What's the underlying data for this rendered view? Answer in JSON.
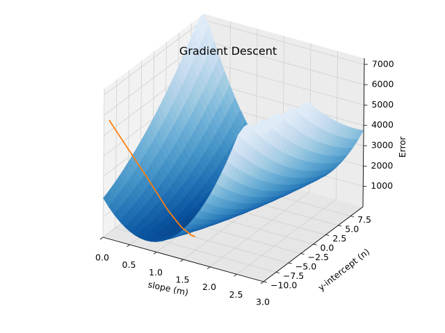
{
  "chart_data": {
    "type": "surface3d",
    "title": "Gradient Descent",
    "xlabel": "slope (m)",
    "ylabel": "y-intercept (n)",
    "zlabel": "Error",
    "x_ticks": [
      0.0,
      0.5,
      1.0,
      1.5,
      2.0,
      2.5,
      3.0
    ],
    "x_tick_labels": [
      "0.0",
      "0.5",
      "1.0",
      "1.5",
      "2.0",
      "2.5",
      "3.0"
    ],
    "y_ticks": [
      -10.0,
      -7.5,
      -5.0,
      -2.5,
      0.0,
      2.5,
      5.0,
      7.5
    ],
    "y_tick_labels": [
      "−10.0",
      "−7.5",
      "−5.0",
      "−2.5",
      "0.0",
      "2.5",
      "5.0",
      "7.5"
    ],
    "z_ticks": [
      1000,
      2000,
      3000,
      4000,
      5000,
      6000,
      7000
    ],
    "z_tick_labels": [
      "1000",
      "2000",
      "3000",
      "4000",
      "5000",
      "6000",
      "7000"
    ],
    "xlim": [
      0,
      3
    ],
    "ylim": [
      -10,
      10
    ],
    "zlim": [
      0,
      7300
    ],
    "surface_colormap": "Blues",
    "grid": true,
    "descent_path": {
      "color": "#ff7f0e",
      "m": [
        0.05,
        0.35,
        0.65,
        0.95,
        1.15,
        1.3,
        1.35
      ],
      "n": [
        -9.5,
        -8.7,
        -7.9,
        -7.2,
        -6.6,
        -6.2,
        -6.0
      ],
      "error": [
        5700,
        4300,
        2900,
        1500,
        700,
        350,
        280
      ]
    }
  }
}
